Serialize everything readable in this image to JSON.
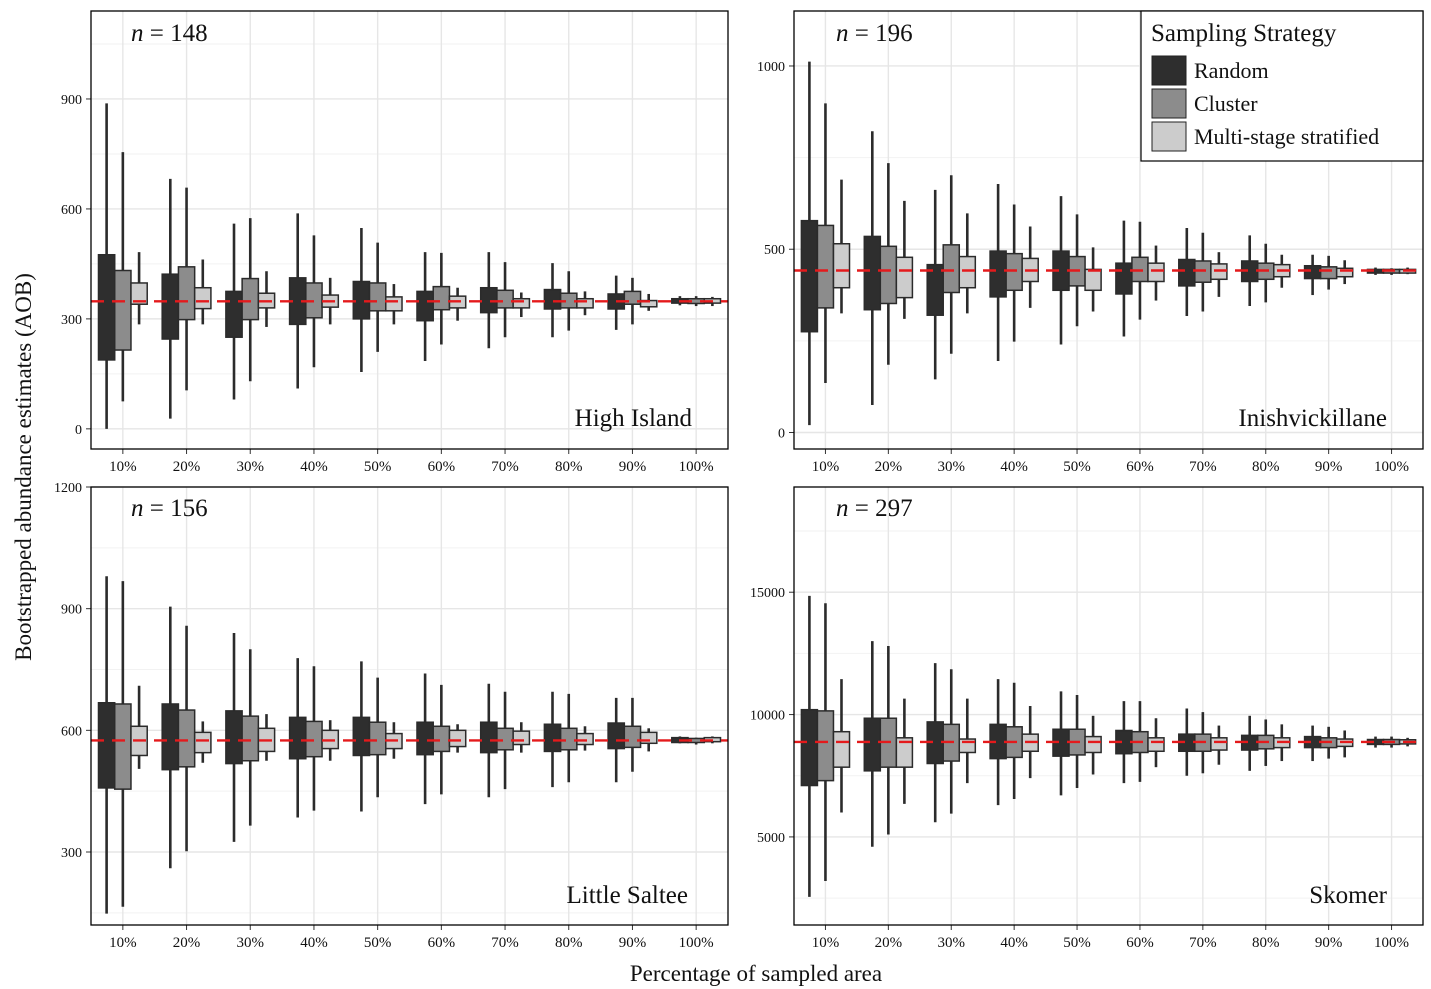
{
  "figure": {
    "xlabel": "Percentage of sampled area",
    "ylabel": "Bootstrapped abundance estimates (AOB)",
    "legend": {
      "title": "Sampling Strategy",
      "placement": "top-right"
    },
    "reference_line_color": "#e41a1c",
    "n_prefix": "n"
  },
  "chart_data": [
    {
      "type": "box",
      "facet": "High Island",
      "n_label": "= 148",
      "reference": 348,
      "ylim": [
        -55,
        1140
      ],
      "yticks": [
        0,
        300,
        600,
        900
      ],
      "categories": [
        "10%",
        "20%",
        "30%",
        "40%",
        "50%",
        "60%",
        "70%",
        "80%",
        "90%",
        "100%"
      ],
      "series": [
        {
          "name": "Random",
          "color": "#2e2e2e",
          "boxes": [
            {
              "min": 0,
              "q1": 188,
              "q3": 475,
              "max": 888
            },
            {
              "min": 28,
              "q1": 245,
              "q3": 422,
              "max": 682
            },
            {
              "min": 80,
              "q1": 250,
              "q3": 375,
              "max": 560
            },
            {
              "min": 110,
              "q1": 285,
              "q3": 412,
              "max": 588
            },
            {
              "min": 155,
              "q1": 300,
              "q3": 402,
              "max": 548
            },
            {
              "min": 185,
              "q1": 295,
              "q3": 375,
              "max": 482
            },
            {
              "min": 220,
              "q1": 317,
              "q3": 385,
              "max": 482
            },
            {
              "min": 250,
              "q1": 327,
              "q3": 380,
              "max": 452
            },
            {
              "min": 270,
              "q1": 327,
              "q3": 368,
              "max": 418
            },
            {
              "min": 337,
              "q1": 343,
              "q3": 355,
              "max": 362
            }
          ]
        },
        {
          "name": "Cluster",
          "color": "#8c8c8c",
          "boxes": [
            {
              "min": 75,
              "q1": 215,
              "q3": 432,
              "max": 755
            },
            {
              "min": 105,
              "q1": 298,
              "q3": 442,
              "max": 658
            },
            {
              "min": 130,
              "q1": 298,
              "q3": 410,
              "max": 575
            },
            {
              "min": 168,
              "q1": 303,
              "q3": 398,
              "max": 528
            },
            {
              "min": 210,
              "q1": 322,
              "q3": 398,
              "max": 508
            },
            {
              "min": 230,
              "q1": 325,
              "q3": 388,
              "max": 480
            },
            {
              "min": 250,
              "q1": 330,
              "q3": 378,
              "max": 455
            },
            {
              "min": 268,
              "q1": 330,
              "q3": 370,
              "max": 430
            },
            {
              "min": 285,
              "q1": 340,
              "q3": 375,
              "max": 412
            },
            {
              "min": 335,
              "q1": 342,
              "q3": 355,
              "max": 362
            }
          ]
        },
        {
          "name": "Multi-stage stratified",
          "color": "#cccccc",
          "boxes": [
            {
              "min": 285,
              "q1": 340,
              "q3": 398,
              "max": 482
            },
            {
              "min": 285,
              "q1": 328,
              "q3": 385,
              "max": 462
            },
            {
              "min": 278,
              "q1": 330,
              "q3": 370,
              "max": 430
            },
            {
              "min": 285,
              "q1": 332,
              "q3": 365,
              "max": 412
            },
            {
              "min": 285,
              "q1": 322,
              "q3": 360,
              "max": 395
            },
            {
              "min": 295,
              "q1": 330,
              "q3": 362,
              "max": 385
            },
            {
              "min": 305,
              "q1": 330,
              "q3": 355,
              "max": 372
            },
            {
              "min": 310,
              "q1": 330,
              "q3": 355,
              "max": 375
            },
            {
              "min": 322,
              "q1": 333,
              "q3": 350,
              "max": 368
            },
            {
              "min": 335,
              "q1": 343,
              "q3": 355,
              "max": 360
            }
          ]
        }
      ]
    },
    {
      "type": "box",
      "facet": "Inishvickillane",
      "n_label": "= 196",
      "reference": 442,
      "ylim": [
        -45,
        1150
      ],
      "yticks": [
        0,
        500,
        1000
      ],
      "categories": [
        "10%",
        "20%",
        "30%",
        "40%",
        "50%",
        "60%",
        "70%",
        "80%",
        "90%",
        "100%"
      ],
      "series": [
        {
          "name": "Random",
          "color": "#2e2e2e",
          "boxes": [
            {
              "min": 20,
              "q1": 275,
              "q3": 578,
              "max": 1012
            },
            {
              "min": 75,
              "q1": 335,
              "q3": 535,
              "max": 822
            },
            {
              "min": 145,
              "q1": 320,
              "q3": 458,
              "max": 662
            },
            {
              "min": 195,
              "q1": 370,
              "q3": 495,
              "max": 678
            },
            {
              "min": 240,
              "q1": 388,
              "q3": 495,
              "max": 645
            },
            {
              "min": 262,
              "q1": 378,
              "q3": 462,
              "max": 578
            },
            {
              "min": 318,
              "q1": 400,
              "q3": 472,
              "max": 558
            },
            {
              "min": 345,
              "q1": 412,
              "q3": 468,
              "max": 538
            },
            {
              "min": 375,
              "q1": 420,
              "q3": 455,
              "max": 485
            },
            {
              "min": 430,
              "q1": 435,
              "q3": 445,
              "max": 450
            }
          ]
        },
        {
          "name": "Cluster",
          "color": "#8c8c8c",
          "boxes": [
            {
              "min": 135,
              "q1": 340,
              "q3": 565,
              "max": 898
            },
            {
              "min": 185,
              "q1": 352,
              "q3": 508,
              "max": 735
            },
            {
              "min": 215,
              "q1": 382,
              "q3": 512,
              "max": 702
            },
            {
              "min": 248,
              "q1": 388,
              "q3": 488,
              "max": 622
            },
            {
              "min": 290,
              "q1": 400,
              "q3": 480,
              "max": 595
            },
            {
              "min": 308,
              "q1": 412,
              "q3": 478,
              "max": 575
            },
            {
              "min": 330,
              "q1": 410,
              "q3": 468,
              "max": 545
            },
            {
              "min": 355,
              "q1": 418,
              "q3": 462,
              "max": 515
            },
            {
              "min": 390,
              "q1": 420,
              "q3": 452,
              "max": 482
            },
            {
              "min": 430,
              "q1": 435,
              "q3": 445,
              "max": 448
            }
          ]
        },
        {
          "name": "Multi-stage stratified",
          "color": "#cccccc",
          "boxes": [
            {
              "min": 325,
              "q1": 395,
              "q3": 515,
              "max": 690
            },
            {
              "min": 310,
              "q1": 368,
              "q3": 478,
              "max": 632
            },
            {
              "min": 325,
              "q1": 395,
              "q3": 480,
              "max": 598
            },
            {
              "min": 340,
              "q1": 412,
              "q3": 475,
              "max": 562
            },
            {
              "min": 330,
              "q1": 388,
              "q3": 445,
              "max": 505
            },
            {
              "min": 360,
              "q1": 412,
              "q3": 462,
              "max": 510
            },
            {
              "min": 370,
              "q1": 418,
              "q3": 460,
              "max": 492
            },
            {
              "min": 395,
              "q1": 425,
              "q3": 458,
              "max": 485
            },
            {
              "min": 405,
              "q1": 425,
              "q3": 448,
              "max": 470
            },
            {
              "min": 432,
              "q1": 435,
              "q3": 445,
              "max": 450
            }
          ]
        }
      ]
    },
    {
      "type": "box",
      "facet": "Little Saltee",
      "n_label": "= 156",
      "reference": 575,
      "ylim": [
        120,
        1200
      ],
      "yticks": [
        300,
        600,
        900,
        1200
      ],
      "categories": [
        "10%",
        "20%",
        "30%",
        "40%",
        "50%",
        "60%",
        "70%",
        "80%",
        "90%",
        "100%"
      ],
      "series": [
        {
          "name": "Random",
          "color": "#2e2e2e",
          "boxes": [
            {
              "min": 148,
              "q1": 458,
              "q3": 668,
              "max": 980
            },
            {
              "min": 260,
              "q1": 503,
              "q3": 665,
              "max": 905
            },
            {
              "min": 325,
              "q1": 518,
              "q3": 648,
              "max": 840
            },
            {
              "min": 385,
              "q1": 530,
              "q3": 632,
              "max": 778
            },
            {
              "min": 400,
              "q1": 538,
              "q3": 632,
              "max": 770
            },
            {
              "min": 418,
              "q1": 540,
              "q3": 620,
              "max": 740
            },
            {
              "min": 435,
              "q1": 545,
              "q3": 620,
              "max": 715
            },
            {
              "min": 460,
              "q1": 548,
              "q3": 615,
              "max": 695
            },
            {
              "min": 472,
              "q1": 555,
              "q3": 618,
              "max": 680
            },
            {
              "min": 568,
              "q1": 570,
              "q3": 582,
              "max": 585
            }
          ]
        },
        {
          "name": "Cluster",
          "color": "#8c8c8c",
          "boxes": [
            {
              "min": 165,
              "q1": 455,
              "q3": 665,
              "max": 968
            },
            {
              "min": 302,
              "q1": 510,
              "q3": 650,
              "max": 858
            },
            {
              "min": 365,
              "q1": 525,
              "q3": 635,
              "max": 800
            },
            {
              "min": 402,
              "q1": 535,
              "q3": 622,
              "max": 758
            },
            {
              "min": 435,
              "q1": 540,
              "q3": 620,
              "max": 730
            },
            {
              "min": 442,
              "q1": 548,
              "q3": 610,
              "max": 712
            },
            {
              "min": 455,
              "q1": 552,
              "q3": 605,
              "max": 695
            },
            {
              "min": 472,
              "q1": 552,
              "q3": 605,
              "max": 690
            },
            {
              "min": 498,
              "q1": 558,
              "q3": 610,
              "max": 680
            },
            {
              "min": 565,
              "q1": 570,
              "q3": 580,
              "max": 582
            }
          ]
        },
        {
          "name": "Multi-stage stratified",
          "color": "#cccccc",
          "boxes": [
            {
              "min": 505,
              "q1": 538,
              "q3": 610,
              "max": 710
            },
            {
              "min": 520,
              "q1": 545,
              "q3": 595,
              "max": 622
            },
            {
              "min": 525,
              "q1": 548,
              "q3": 605,
              "max": 640
            },
            {
              "min": 525,
              "q1": 555,
              "q3": 600,
              "max": 625
            },
            {
              "min": 530,
              "q1": 555,
              "q3": 592,
              "max": 620
            },
            {
              "min": 545,
              "q1": 560,
              "q3": 600,
              "max": 615
            },
            {
              "min": 545,
              "q1": 565,
              "q3": 598,
              "max": 620
            },
            {
              "min": 550,
              "q1": 565,
              "q3": 592,
              "max": 610
            },
            {
              "min": 548,
              "q1": 568,
              "q3": 595,
              "max": 605
            },
            {
              "min": 568,
              "q1": 572,
              "q3": 582,
              "max": 585
            }
          ]
        }
      ]
    },
    {
      "type": "box",
      "facet": "Skomer",
      "n_label": "= 297",
      "reference": 8880,
      "ylim": [
        1400,
        19300
      ],
      "yticks": [
        5000,
        10000,
        15000
      ],
      "categories": [
        "10%",
        "20%",
        "30%",
        "40%",
        "50%",
        "60%",
        "70%",
        "80%",
        "90%",
        "100%"
      ],
      "series": [
        {
          "name": "Random",
          "color": "#2e2e2e",
          "boxes": [
            {
              "min": 2550,
              "q1": 7100,
              "q3": 10200,
              "max": 14850
            },
            {
              "min": 4600,
              "q1": 7700,
              "q3": 9850,
              "max": 13000
            },
            {
              "min": 5600,
              "q1": 8000,
              "q3": 9700,
              "max": 12100
            },
            {
              "min": 6300,
              "q1": 8200,
              "q3": 9600,
              "max": 11450
            },
            {
              "min": 6700,
              "q1": 8300,
              "q3": 9400,
              "max": 10950
            },
            {
              "min": 7200,
              "q1": 8400,
              "q3": 9350,
              "max": 10550
            },
            {
              "min": 7500,
              "q1": 8500,
              "q3": 9200,
              "max": 10250
            },
            {
              "min": 7700,
              "q1": 8550,
              "q3": 9150,
              "max": 9950
            },
            {
              "min": 8100,
              "q1": 8650,
              "q3": 9100,
              "max": 9550
            },
            {
              "min": 8650,
              "q1": 8780,
              "q3": 8980,
              "max": 9100
            }
          ]
        },
        {
          "name": "Cluster",
          "color": "#8c8c8c",
          "boxes": [
            {
              "min": 3200,
              "q1": 7300,
              "q3": 10150,
              "max": 14550
            },
            {
              "min": 5100,
              "q1": 7850,
              "q3": 9850,
              "max": 12800
            },
            {
              "min": 5950,
              "q1": 8100,
              "q3": 9600,
              "max": 11850
            },
            {
              "min": 6550,
              "q1": 8250,
              "q3": 9500,
              "max": 11300
            },
            {
              "min": 7000,
              "q1": 8350,
              "q3": 9400,
              "max": 10800
            },
            {
              "min": 7250,
              "q1": 8450,
              "q3": 9300,
              "max": 10550
            },
            {
              "min": 7600,
              "q1": 8500,
              "q3": 9200,
              "max": 10100
            },
            {
              "min": 7900,
              "q1": 8600,
              "q3": 9150,
              "max": 9800
            },
            {
              "min": 8200,
              "q1": 8650,
              "q3": 9050,
              "max": 9500
            },
            {
              "min": 8650,
              "q1": 8780,
              "q3": 8980,
              "max": 9100
            }
          ]
        },
        {
          "name": "Multi-stage stratified",
          "color": "#cccccc",
          "boxes": [
            {
              "min": 6000,
              "q1": 7850,
              "q3": 9300,
              "max": 11450
            },
            {
              "min": 6350,
              "q1": 7850,
              "q3": 9050,
              "max": 10650
            },
            {
              "min": 7200,
              "q1": 8450,
              "q3": 9000,
              "max": 10650
            },
            {
              "min": 7400,
              "q1": 8500,
              "q3": 9200,
              "max": 10350
            },
            {
              "min": 7550,
              "q1": 8450,
              "q3": 9100,
              "max": 9950
            },
            {
              "min": 7850,
              "q1": 8500,
              "q3": 9050,
              "max": 9850
            },
            {
              "min": 7950,
              "q1": 8550,
              "q3": 9050,
              "max": 9550
            },
            {
              "min": 8100,
              "q1": 8650,
              "q3": 9050,
              "max": 9600
            },
            {
              "min": 8250,
              "q1": 8700,
              "q3": 9000,
              "max": 9350
            },
            {
              "min": 8700,
              "q1": 8800,
              "q3": 8970,
              "max": 9050
            }
          ]
        }
      ]
    }
  ]
}
